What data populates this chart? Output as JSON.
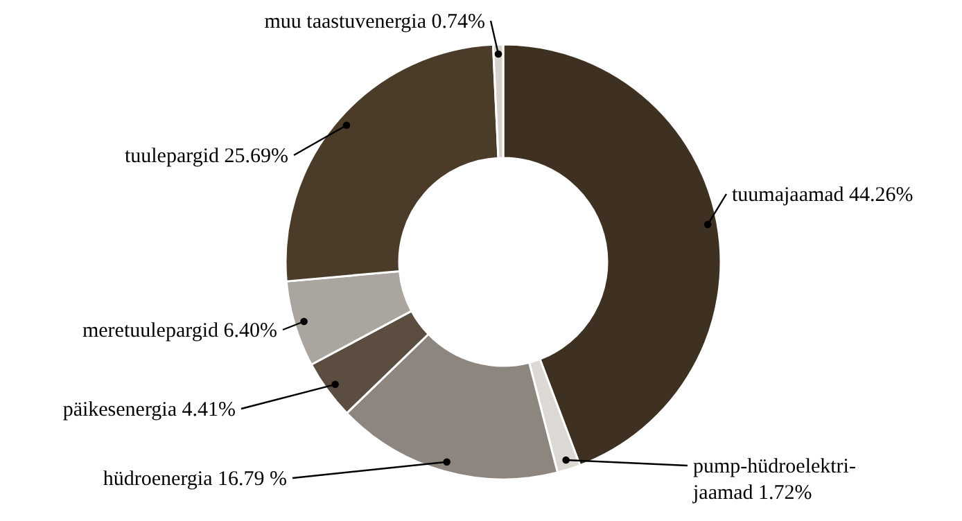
{
  "chart_data": {
    "type": "donut",
    "categories": [
      "tuumajaamad",
      "pump-hüdroelektri-jaamad",
      "hüdroenergia",
      "päikesenergia",
      "meretuulepargid",
      "tuulepargid",
      "muu taastuvenergia"
    ],
    "values": [
      44.26,
      1.72,
      16.79,
      4.41,
      6.4,
      25.69,
      0.74
    ],
    "value_labels": [
      "44.26%",
      "1.72%",
      "16.79 %",
      "4.41%",
      "6.40%",
      "25.69%",
      "0.74%"
    ],
    "colors": [
      "#3e3121",
      "#dcd8d3",
      "#8d867e",
      "#5b4e41",
      "#aba59f",
      "#4a3c28",
      "#d6d2cc"
    ]
  }
}
